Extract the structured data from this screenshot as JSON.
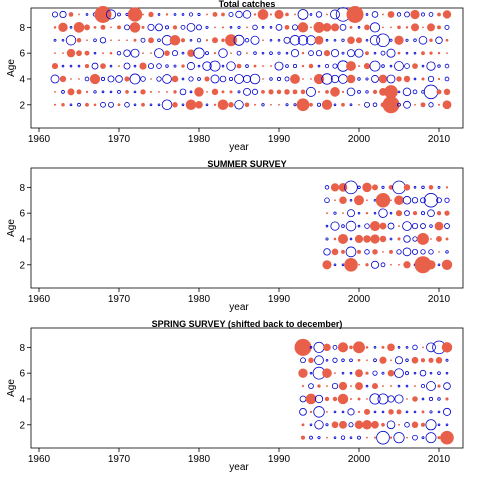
{
  "figure": {
    "panel_count": 3
  },
  "chart_data": [
    {
      "type": "scatter",
      "title": "Total catches",
      "xlabel": "year",
      "ylabel": "Age",
      "xlim": [
        1959,
        2013
      ],
      "ylim": [
        0.2,
        9.5
      ],
      "xticks": [
        1960,
        1970,
        1980,
        1990,
        2000,
        2010
      ],
      "yticks": [
        2,
        4,
        6,
        8
      ],
      "x_years": [
        1962,
        2011
      ],
      "ages": [
        2,
        3,
        4,
        5,
        6,
        7,
        8,
        9
      ],
      "positive_color": "#e8604a",
      "negative_color": "#0000cc",
      "highlights": [
        {
          "x": 1968,
          "age": 9,
          "sign": "positive",
          "size": 1.0
        },
        {
          "x": 1972,
          "age": 9,
          "sign": "positive",
          "size": 0.85
        },
        {
          "x": 1999.5,
          "age": 9,
          "sign": "positive",
          "size": 1.0
        },
        {
          "x": 2004,
          "age": 2,
          "sign": "positive",
          "size": 1.0
        },
        {
          "x": 2004,
          "age": 3,
          "sign": "positive",
          "size": 0.8
        },
        {
          "x": 1984,
          "age": 7,
          "sign": "positive",
          "size": 0.7
        },
        {
          "x": 1995,
          "age": 8,
          "sign": "positive",
          "size": 0.65
        },
        {
          "x": 1998,
          "age": 9,
          "sign": "negative",
          "size": 0.8
        },
        {
          "x": 2003,
          "age": 7,
          "sign": "negative",
          "size": 0.75
        },
        {
          "x": 2009,
          "age": 3,
          "sign": "negative",
          "size": 0.8
        },
        {
          "x": 1993,
          "age": 2,
          "sign": "positive",
          "size": 0.75
        }
      ],
      "seed": 11
    },
    {
      "type": "scatter",
      "title": "SUMMER SURVEY",
      "xlabel": "year",
      "ylabel": "Age",
      "xlim": [
        1959,
        2013
      ],
      "ylim": [
        0.2,
        9.5
      ],
      "xticks": [
        1960,
        1970,
        1980,
        1990,
        2000,
        2010
      ],
      "yticks": [
        2,
        4,
        6,
        8
      ],
      "x_years": [
        1996,
        2011
      ],
      "ages": [
        2,
        3,
        4,
        5,
        6,
        7,
        8
      ],
      "positive_color": "#e8604a",
      "negative_color": "#0000cc",
      "highlights": [
        {
          "x": 2008,
          "age": 2,
          "sign": "positive",
          "size": 1.0
        },
        {
          "x": 2003,
          "age": 7,
          "sign": "positive",
          "size": 0.85
        },
        {
          "x": 1999,
          "age": 2,
          "sign": "positive",
          "size": 0.8
        },
        {
          "x": 2009,
          "age": 7,
          "sign": "negative",
          "size": 0.8
        },
        {
          "x": 2005,
          "age": 8,
          "sign": "negative",
          "size": 0.75
        },
        {
          "x": 1999,
          "age": 8,
          "sign": "negative",
          "size": 0.75
        },
        {
          "x": 2008,
          "age": 4,
          "sign": "positive",
          "size": 0.7
        }
      ],
      "seed": 29
    },
    {
      "type": "scatter",
      "title": "SPRING SURVEY (shifted back to december)",
      "xlabel": "year",
      "ylabel": "Age",
      "xlim": [
        1959,
        2013
      ],
      "ylim": [
        0.2,
        9.5
      ],
      "xticks": [
        1960,
        1970,
        1980,
        1990,
        2000,
        2010
      ],
      "yticks": [
        2,
        4,
        6,
        8
      ],
      "x_years": [
        1993,
        2011
      ],
      "ages": [
        1,
        2,
        3,
        4,
        5,
        6,
        7,
        8
      ],
      "positive_color": "#e8604a",
      "negative_color": "#0000cc",
      "highlights": [
        {
          "x": 1993,
          "age": 8,
          "sign": "positive",
          "size": 1.0
        },
        {
          "x": 2011,
          "age": 1,
          "sign": "positive",
          "size": 0.8
        },
        {
          "x": 2003,
          "age": 1,
          "sign": "negative",
          "size": 0.75
        },
        {
          "x": 2010,
          "age": 8,
          "sign": "negative",
          "size": 0.75
        },
        {
          "x": 2000,
          "age": 8,
          "sign": "positive",
          "size": 0.7
        },
        {
          "x": 1995,
          "age": 6,
          "sign": "negative",
          "size": 0.7
        }
      ],
      "seed": 47
    }
  ]
}
